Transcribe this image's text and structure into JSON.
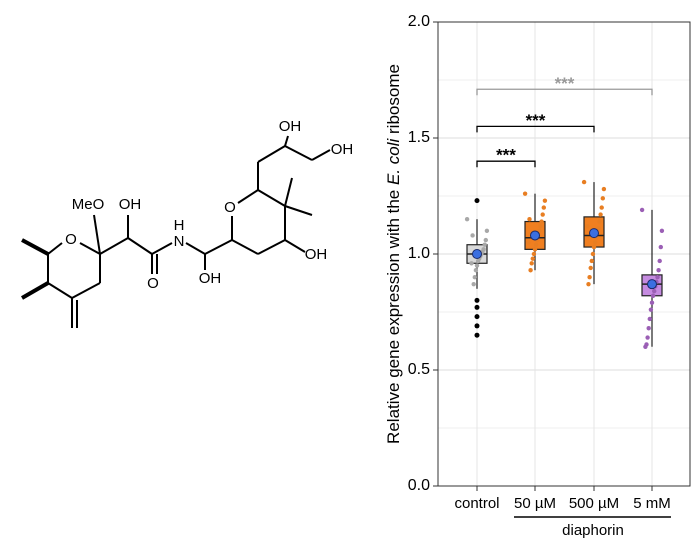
{
  "structure": {
    "labels": [
      "MeO",
      "OH",
      "O",
      "H",
      "N",
      "OH",
      "O",
      "O",
      "OH",
      "OH",
      "OH"
    ]
  },
  "chart_data": {
    "type": "box",
    "ylabel": [
      "Relative gene expression with the ",
      "E. coli",
      " ribosome"
    ],
    "categories": [
      "control",
      "50 µM",
      "500 µM",
      "5 mM"
    ],
    "group_label": "diaphorin",
    "ylim": [
      0,
      2
    ],
    "yticks": [
      0.0,
      0.5,
      1.0,
      1.5,
      2.0
    ],
    "minor_yticks": [
      0.25,
      0.75,
      1.25,
      1.75
    ],
    "grid": true,
    "yticklabels": [
      "0.0",
      "0.5",
      "1.0",
      "1.5",
      "2.0"
    ],
    "mean_color": "#3b6fe0",
    "boxes": [
      {
        "whisker_low": 0.85,
        "q1": 0.96,
        "median": 1.0,
        "q3": 1.04,
        "whisker_high": 1.15,
        "mean": 1.0,
        "color": "#d9d9d9",
        "point_color": "#a8a8a8",
        "points": [
          1.15,
          1.1,
          1.06,
          1.04,
          1.02,
          1.01,
          1.0,
          0.99,
          0.98,
          0.97,
          0.95,
          0.93,
          0.9,
          0.87,
          1.08,
          0.96
        ],
        "outliers": [
          1.23,
          0.8,
          0.77,
          0.73,
          0.69,
          0.65
        ]
      },
      {
        "whisker_low": 0.93,
        "q1": 1.02,
        "median": 1.07,
        "q3": 1.14,
        "whisker_high": 1.26,
        "mean": 1.08,
        "color": "#f07f20",
        "point_color": "#e87e22",
        "points": [
          1.26,
          1.23,
          1.2,
          1.17,
          1.14,
          1.12,
          1.1,
          1.08,
          1.06,
          1.04,
          1.02,
          1.0,
          0.98,
          0.96,
          0.93,
          1.15,
          1.05
        ],
        "outliers": []
      },
      {
        "whisker_low": 0.87,
        "q1": 1.03,
        "median": 1.08,
        "q3": 1.16,
        "whisker_high": 1.31,
        "mean": 1.09,
        "color": "#f07f20",
        "point_color": "#e87e22",
        "points": [
          1.31,
          1.28,
          1.24,
          1.2,
          1.17,
          1.14,
          1.11,
          1.09,
          1.07,
          1.05,
          1.03,
          1.0,
          0.97,
          0.94,
          0.9,
          0.87,
          1.12
        ],
        "outliers": []
      },
      {
        "whisker_low": 0.6,
        "q1": 0.82,
        "median": 0.87,
        "q3": 0.91,
        "whisker_high": 1.19,
        "mean": 0.87,
        "color": "#c58be0",
        "point_color": "#9b5fb5",
        "points": [
          1.19,
          1.1,
          1.03,
          0.97,
          0.93,
          0.9,
          0.88,
          0.86,
          0.84,
          0.82,
          0.79,
          0.76,
          0.72,
          0.68,
          0.64,
          0.61,
          0.6
        ],
        "outliers": []
      }
    ],
    "significance": [
      {
        "from": 0,
        "to": 3,
        "y": 1.71,
        "label": "***",
        "color": "#999999"
      },
      {
        "from": 0,
        "to": 2,
        "y": 1.55,
        "label": "***",
        "color": "#000000"
      },
      {
        "from": 0,
        "to": 1,
        "y": 1.4,
        "label": "***",
        "color": "#000000"
      }
    ]
  }
}
